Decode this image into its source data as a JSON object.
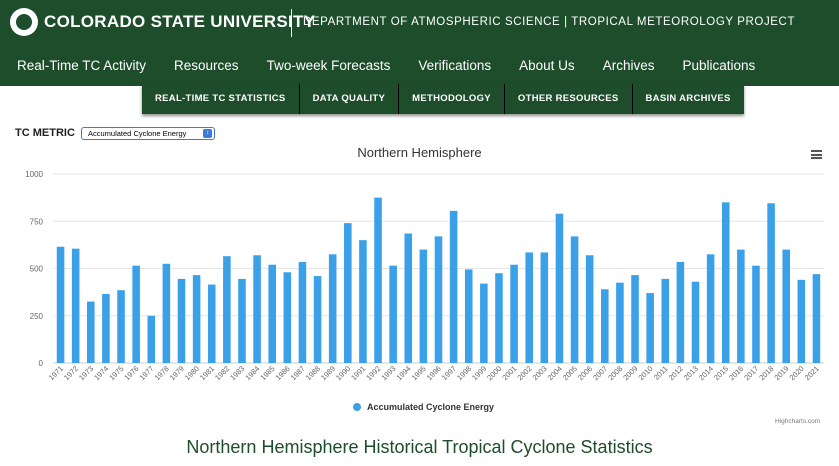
{
  "header": {
    "university": "COLORADO STATE UNIVERSITY",
    "department": "DEPARTMENT OF ATMOSPHERIC SCIENCE | TROPICAL METEOROLOGY PROJECT",
    "brand_color": "#1e4d2b"
  },
  "main_nav": [
    "Real-Time TC Activity",
    "Resources",
    "Two-week Forecasts",
    "Verifications",
    "About Us",
    "Archives",
    "Publications"
  ],
  "sub_nav": [
    "REAL-TIME TC STATISTICS",
    "DATA QUALITY",
    "METHODOLOGY",
    "OTHER RESOURCES",
    "BASIN ARCHIVES"
  ],
  "metric": {
    "label": "TC METRIC",
    "selected": "Accumulated Cyclone Energy"
  },
  "chart_menu_icon": "hamburger-menu-icon",
  "credit": "Highcharts.com",
  "page_heading": "Northern Hemisphere Historical Tropical Cyclone Statistics",
  "chart_data": {
    "type": "bar",
    "title": "Northern Hemisphere",
    "xlabel": "",
    "ylabel": "",
    "ylim": [
      0,
      1000
    ],
    "yticks": [
      0,
      250,
      500,
      750,
      1000
    ],
    "grid": true,
    "legend_position": "bottom-center",
    "categories": [
      "1971",
      "1972",
      "1973",
      "1974",
      "1975",
      "1976",
      "1977",
      "1978",
      "1979",
      "1980",
      "1981",
      "1982",
      "1983",
      "1984",
      "1985",
      "1986",
      "1987",
      "1988",
      "1989",
      "1990",
      "1991",
      "1992",
      "1993",
      "1994",
      "1995",
      "1996",
      "1997",
      "1998",
      "1999",
      "2000",
      "2001",
      "2002",
      "2003",
      "2004",
      "2005",
      "2006",
      "2007",
      "2008",
      "2009",
      "2010",
      "2011",
      "2012",
      "2013",
      "2014",
      "2015",
      "2016",
      "2017",
      "2018",
      "2019",
      "2020",
      "2021"
    ],
    "series": [
      {
        "name": "Accumulated Cyclone Energy",
        "color": "#3aa0e8",
        "values": [
          615,
          605,
          325,
          365,
          385,
          515,
          250,
          525,
          445,
          465,
          415,
          565,
          445,
          570,
          520,
          480,
          535,
          460,
          575,
          740,
          650,
          875,
          515,
          685,
          600,
          670,
          805,
          495,
          420,
          475,
          520,
          585,
          585,
          790,
          670,
          570,
          390,
          425,
          465,
          370,
          445,
          535,
          430,
          575,
          850,
          600,
          515,
          845,
          600,
          440,
          470
        ]
      }
    ]
  }
}
